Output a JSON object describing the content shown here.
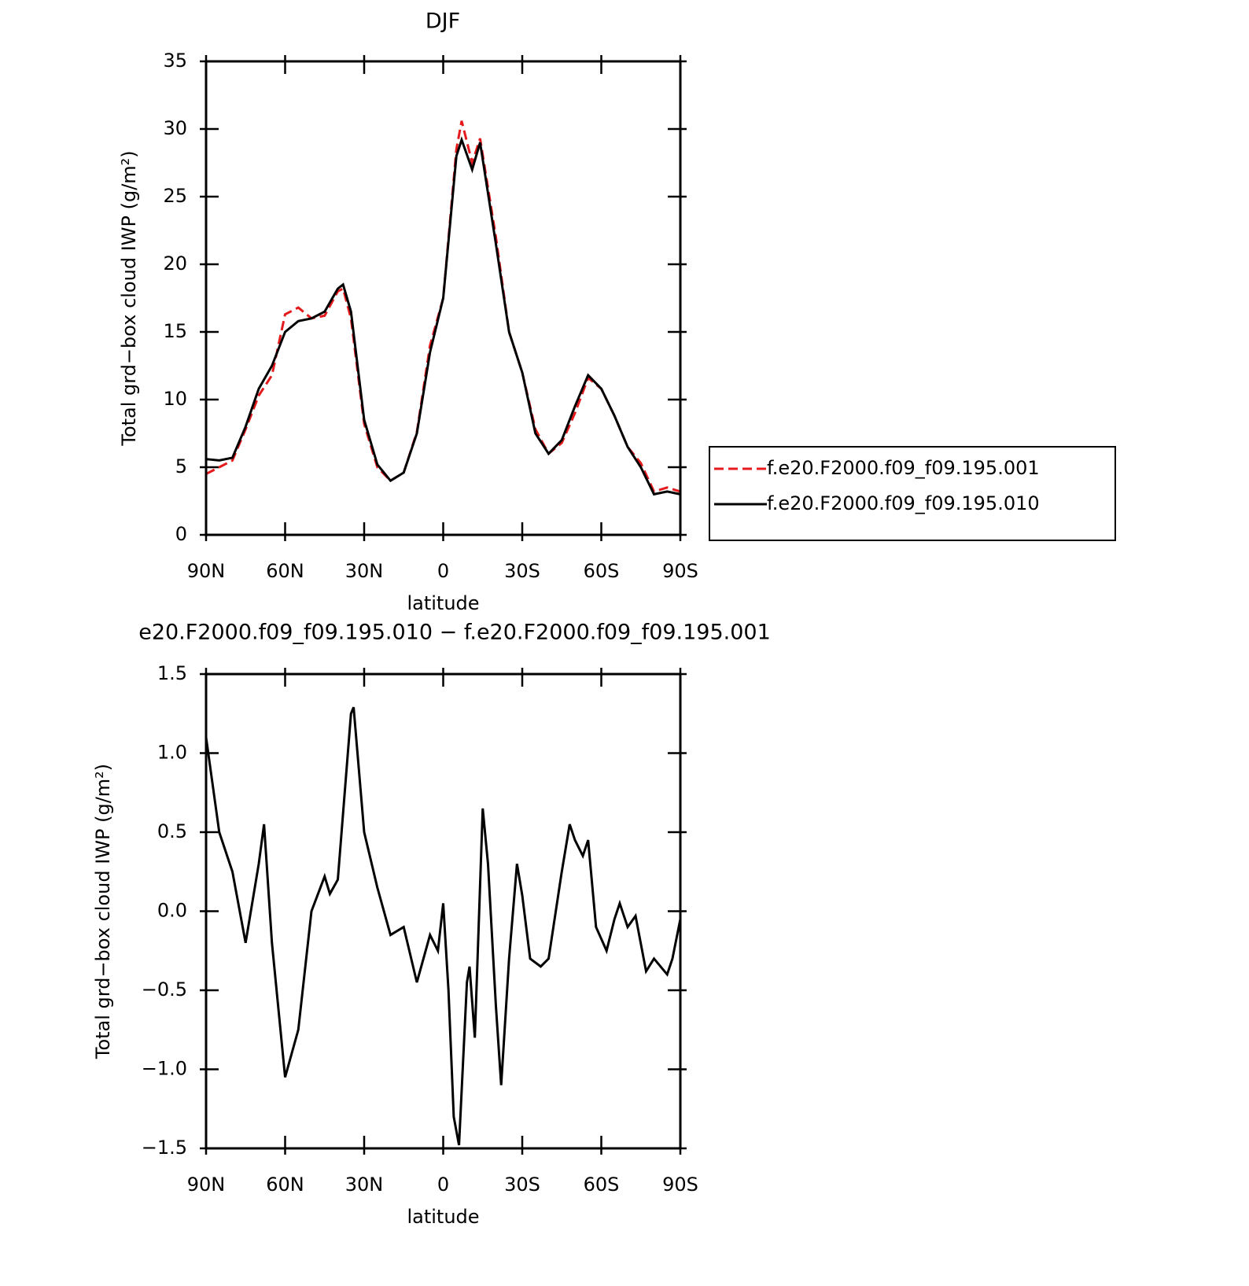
{
  "chart_data": [
    {
      "type": "line",
      "title": "DJF",
      "xlabel": "latitude",
      "ylabel": "Total grd−box cloud IWP (g/m²)",
      "x": [
        90,
        85,
        80,
        75,
        70,
        65,
        60,
        55,
        50,
        45,
        40,
        38,
        35,
        30,
        25,
        20,
        15,
        10,
        5,
        0,
        -5,
        -7,
        -11,
        -14,
        -20,
        -25,
        -30,
        -35,
        -40,
        -45,
        -50,
        -55,
        -60,
        -65,
        -70,
        -75,
        -80,
        -85,
        -90
      ],
      "series": [
        {
          "name": "f.e20.F2000.f09_f09.195.001",
          "color": "#e41a1c",
          "style": "dashed",
          "values": [
            4.5,
            5.0,
            5.5,
            7.8,
            10.3,
            11.8,
            16.3,
            16.8,
            16.0,
            16.2,
            18.0,
            18.2,
            16.0,
            8.2,
            5.0,
            4.0,
            4.6,
            7.6,
            14.0,
            17.5,
            28.5,
            30.6,
            27.5,
            29.3,
            22.0,
            15.0,
            12.0,
            7.8,
            6.0,
            6.8,
            9.0,
            11.6,
            10.8,
            8.8,
            6.5,
            5.3,
            3.2,
            3.5,
            3.2
          ]
        },
        {
          "name": "f.e20.F2000.f09_f09.195.010",
          "color": "#000000",
          "style": "solid",
          "values": [
            5.6,
            5.5,
            5.7,
            8.0,
            10.8,
            12.5,
            15.0,
            15.8,
            16.0,
            16.5,
            18.2,
            18.5,
            16.5,
            8.5,
            5.2,
            4.0,
            4.6,
            7.5,
            13.5,
            17.5,
            28.0,
            29.2,
            27.0,
            29.0,
            21.5,
            15.0,
            12.0,
            7.5,
            6.0,
            7.0,
            9.5,
            11.8,
            10.8,
            8.8,
            6.5,
            5.0,
            3.0,
            3.2,
            3.0
          ]
        }
      ],
      "xlim": [
        90,
        -90
      ],
      "xticks": [
        {
          "value": 90,
          "label": "90N"
        },
        {
          "value": 60,
          "label": "60N"
        },
        {
          "value": 30,
          "label": "30N"
        },
        0,
        {
          "value": -30,
          "label": "30S"
        },
        {
          "value": -60,
          "label": "60S"
        },
        {
          "value": -90,
          "label": "90S"
        }
      ],
      "ylim": [
        0,
        35
      ],
      "yticks": [
        0,
        5,
        10,
        15,
        20,
        25,
        30,
        35
      ],
      "legend": "right"
    },
    {
      "type": "line",
      "title": "e20.F2000.f09_f09.195.010 − f.e20.F2000.f09_f09.195.001",
      "xlabel": "latitude",
      "ylabel": "Total grd−box cloud IWP (g/m²)",
      "x": [
        90,
        85,
        80,
        75,
        70,
        68,
        65,
        60,
        55,
        50,
        45,
        43,
        40,
        35,
        34,
        30,
        25,
        20,
        15,
        10,
        5,
        2,
        0,
        -2,
        -4,
        -6,
        -9,
        -10,
        -12,
        -15,
        -17,
        -20,
        -22,
        -25,
        -28,
        -30,
        -33,
        -37,
        -40,
        -45,
        -48,
        -50,
        -53,
        -55,
        -58,
        -62,
        -65,
        -67,
        -70,
        -73,
        -77,
        -80,
        -85,
        -87,
        -90
      ],
      "series": [
        {
          "color": "#000000",
          "style": "solid",
          "values": [
            1.1,
            0.5,
            0.25,
            -0.2,
            0.3,
            0.55,
            -0.2,
            -1.05,
            -0.75,
            0.0,
            0.22,
            0.11,
            0.2,
            1.25,
            1.29,
            0.5,
            0.15,
            -0.15,
            -0.1,
            -0.45,
            -0.15,
            -0.25,
            0.05,
            -0.5,
            -1.3,
            -1.48,
            -0.45,
            -0.35,
            -0.8,
            0.65,
            0.3,
            -0.6,
            -1.1,
            -0.3,
            0.3,
            0.1,
            -0.3,
            -0.35,
            -0.3,
            0.25,
            0.55,
            0.45,
            0.35,
            0.45,
            -0.1,
            -0.25,
            -0.05,
            0.05,
            -0.1,
            -0.03,
            -0.38,
            -0.3,
            -0.4,
            -0.3,
            -0.05
          ]
        }
      ],
      "xlim": [
        90,
        -90
      ],
      "xticks": [
        {
          "value": 90,
          "label": "90N"
        },
        {
          "value": 60,
          "label": "60N"
        },
        {
          "value": 30,
          "label": "30N"
        },
        0,
        {
          "value": -30,
          "label": "30S"
        },
        {
          "value": -60,
          "label": "60S"
        },
        {
          "value": -90,
          "label": "90S"
        }
      ],
      "ylim": [
        -1.5,
        1.5
      ],
      "yticks": [
        {
          "value": -1.5,
          "label": "−1.5"
        },
        {
          "value": -1.0,
          "label": "−1.0"
        },
        {
          "value": -0.5,
          "label": "−0.5"
        },
        {
          "value": 0,
          "label": "0.0"
        },
        0.5,
        {
          "value": 1.0,
          "label": "1.0"
        },
        1.5
      ]
    }
  ]
}
